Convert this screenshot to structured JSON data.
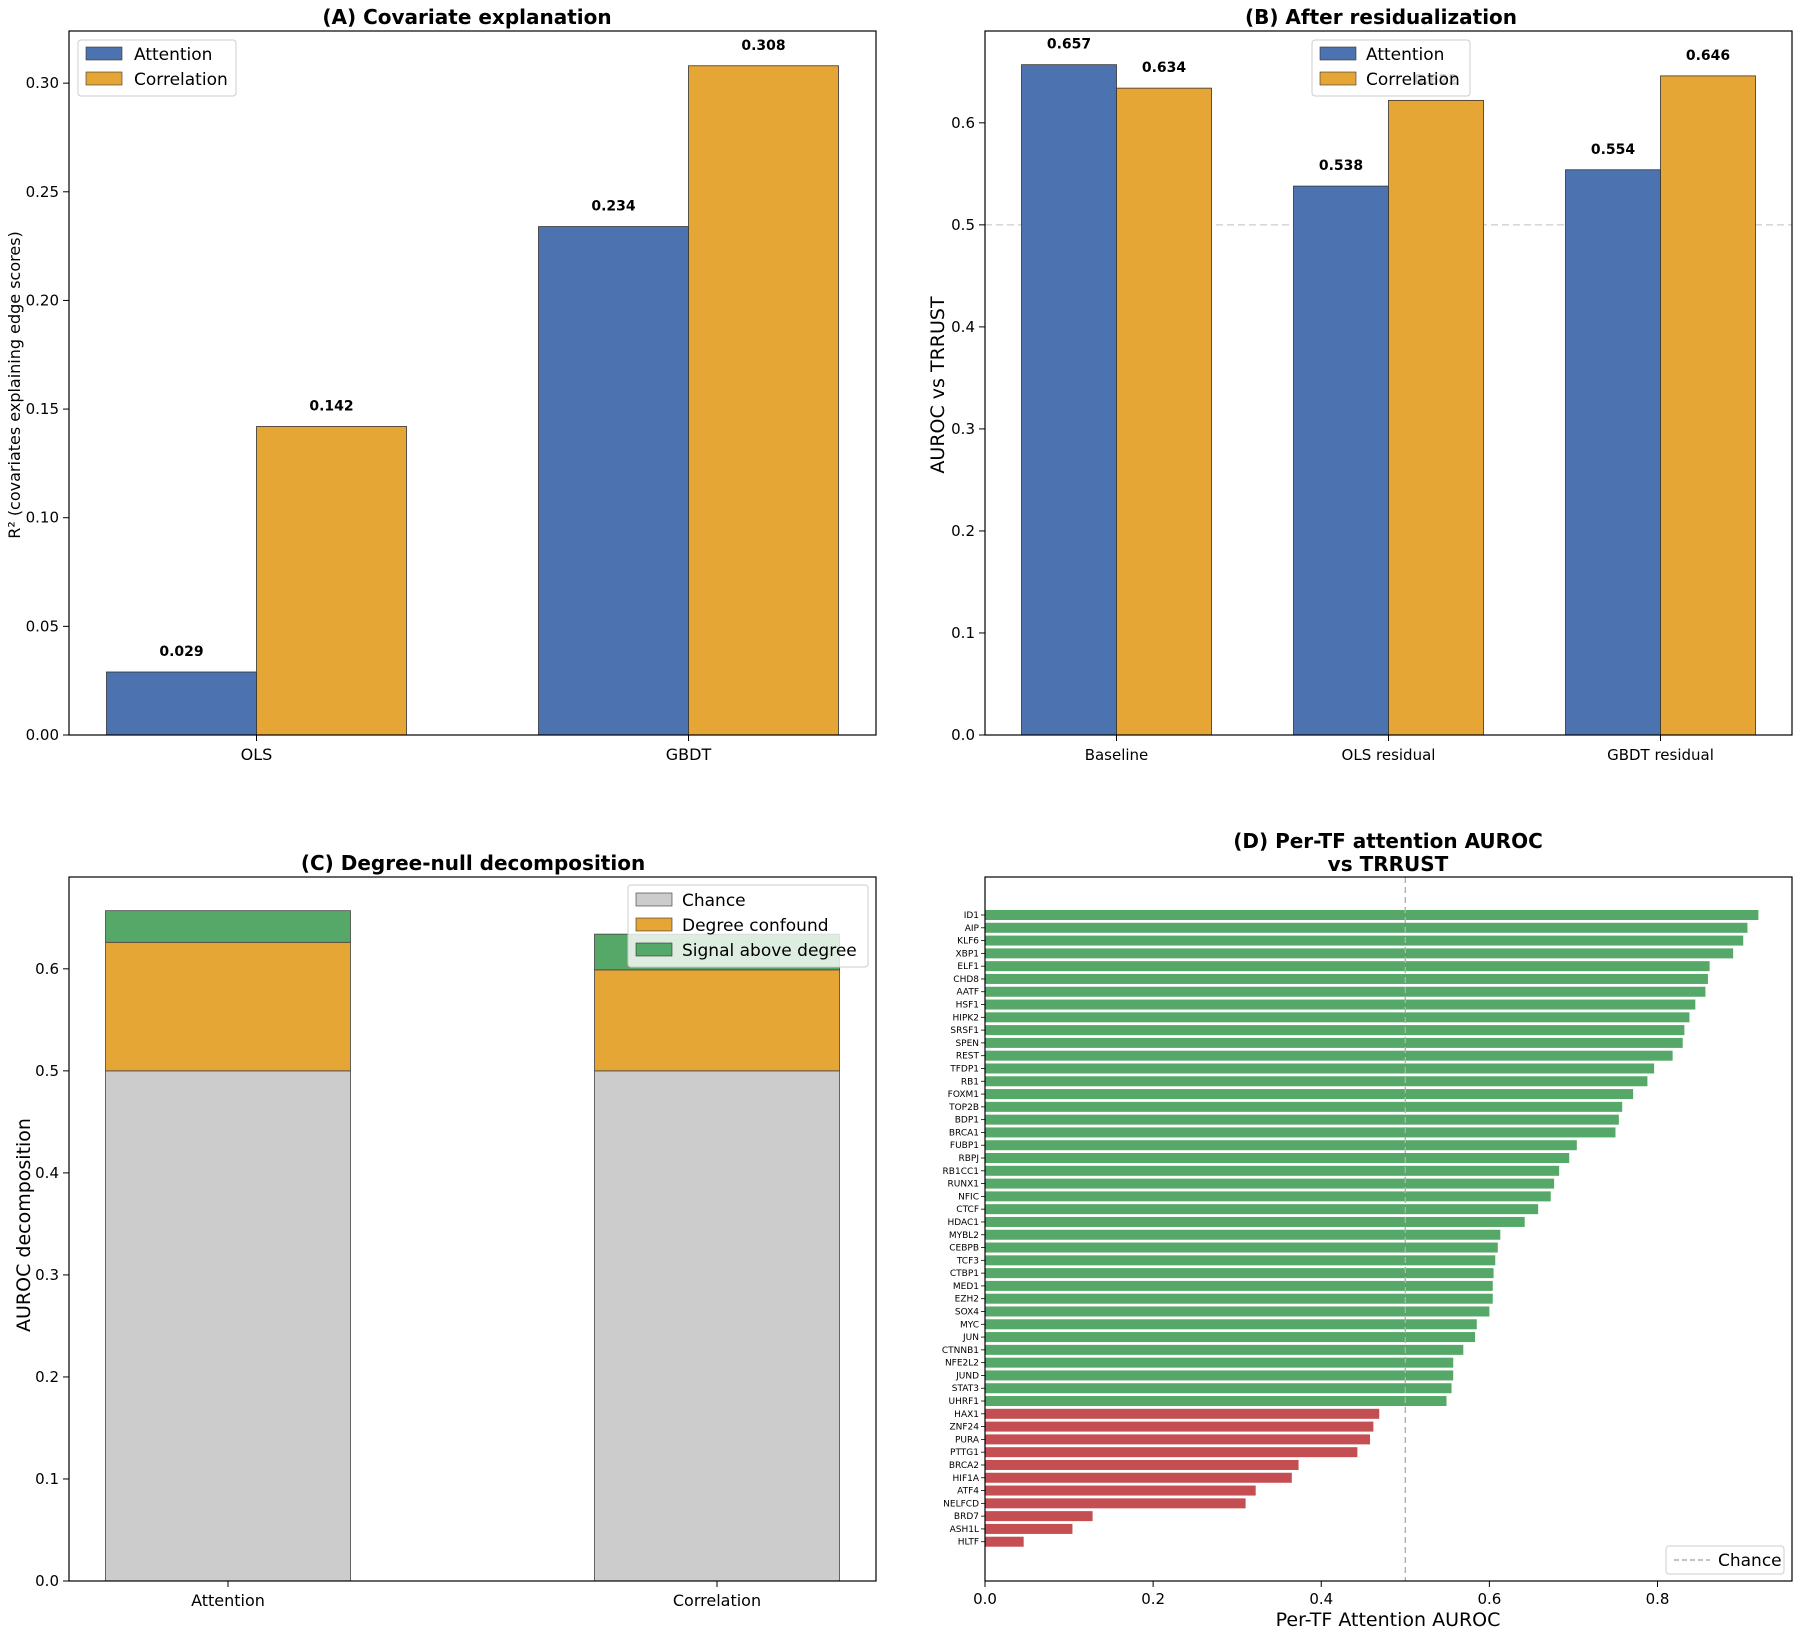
{
  "colors": {
    "attention": "#4c72b0",
    "correlation": "#e6a636",
    "chance": "#cccccc",
    "degree": "#e6a636",
    "signal": "#55a868",
    "negative": "#c44e52",
    "chanceLine": "#b0b0b0"
  },
  "panelA": {
    "title": "(A) Covariate explanation",
    "ylabel": "R² (covariates explaining edge scores)",
    "chart_data": {
      "type": "bar",
      "categories": [
        "OLS",
        "GBDT"
      ],
      "series": [
        {
          "name": "Attention",
          "values": [
            0.029,
            0.234
          ]
        },
        {
          "name": "Correlation",
          "values": [
            0.142,
            0.308
          ]
        }
      ],
      "labels": [
        [
          "0.029",
          "0.234"
        ],
        [
          "0.142",
          "0.308"
        ]
      ],
      "ylim": [
        0,
        0.324
      ],
      "yticks": [
        "0.00",
        "0.05",
        "0.10",
        "0.15",
        "0.20",
        "0.25",
        "0.30"
      ],
      "legend": [
        "Attention",
        "Correlation"
      ]
    }
  },
  "panelB": {
    "title": "(B) After residualization",
    "ylabel": "AUROC vs TRRUST",
    "chart_data": {
      "type": "bar",
      "categories": [
        "Baseline",
        "OLS residual",
        "GBDT residual"
      ],
      "series": [
        {
          "name": "Attention",
          "values": [
            0.657,
            0.538,
            0.554
          ]
        },
        {
          "name": "Correlation",
          "values": [
            0.634,
            0.622,
            0.646
          ]
        }
      ],
      "labels": [
        [
          "0.657",
          "0.538",
          "0.554"
        ],
        [
          "0.634",
          "0.622",
          "0.646"
        ]
      ],
      "reference_line": 0.5,
      "ylim": [
        0,
        0.69
      ],
      "yticks": [
        "0.0",
        "0.1",
        "0.2",
        "0.3",
        "0.4",
        "0.5",
        "0.6"
      ],
      "legend": [
        "Attention",
        "Correlation"
      ]
    }
  },
  "panelC": {
    "title": "(C) Degree-null decomposition",
    "ylabel": "AUROC decomposition",
    "chart_data": {
      "type": "bar",
      "stacked": true,
      "categories": [
        "Attention",
        "Correlation"
      ],
      "series": [
        {
          "name": "Chance",
          "values": [
            0.5,
            0.5
          ]
        },
        {
          "name": "Degree confound",
          "values": [
            0.126,
            0.099
          ]
        },
        {
          "name": "Signal above degree",
          "values": [
            0.031,
            0.035
          ]
        }
      ],
      "ylim": [
        0,
        0.69
      ],
      "yticks": [
        "0.0",
        "0.1",
        "0.2",
        "0.3",
        "0.4",
        "0.5",
        "0.6"
      ],
      "legend": [
        "Chance",
        "Degree confound",
        "Signal above degree"
      ]
    }
  },
  "panelD": {
    "title": [
      "(D) Per-TF attention AUROC",
      "vs TRRUST"
    ],
    "xlabel": "Per-TF Attention AUROC",
    "chart_data": {
      "type": "barh",
      "categories": [
        "ID1",
        "AIP",
        "KLF6",
        "XBP1",
        "ELF1",
        "CHD8",
        "AATF",
        "HSF1",
        "HIPK2",
        "SRSF1",
        "SPEN",
        "REST",
        "TFDP1",
        "RB1",
        "FOXM1",
        "TOP2B",
        "BDP1",
        "BRCA1",
        "FUBP1",
        "RBPJ",
        "RB1CC1",
        "RUNX1",
        "NFIC",
        "CTCF",
        "HDAC1",
        "MYBL2",
        "CEBPB",
        "TCF3",
        "CTBP1",
        "MED1",
        "EZH2",
        "SOX4",
        "MYC",
        "JUN",
        "CTNNB1",
        "NFE2L2",
        "JUND",
        "STAT3",
        "UHRF1",
        "HAX1",
        "ZNF24",
        "PURA",
        "PTTG1",
        "BRCA2",
        "HIF1A",
        "ATF4",
        "NELFCD",
        "BRD7",
        "ASH1L",
        "HLTF"
      ],
      "values": [
        0.92,
        0.907,
        0.902,
        0.89,
        0.862,
        0.86,
        0.857,
        0.845,
        0.838,
        0.832,
        0.83,
        0.818,
        0.796,
        0.788,
        0.771,
        0.758,
        0.754,
        0.75,
        0.704,
        0.695,
        0.683,
        0.677,
        0.673,
        0.658,
        0.642,
        0.613,
        0.61,
        0.607,
        0.605,
        0.604,
        0.604,
        0.6,
        0.585,
        0.583,
        0.569,
        0.557,
        0.557,
        0.555,
        0.549,
        0.469,
        0.462,
        0.458,
        0.443,
        0.373,
        0.365,
        0.322,
        0.31,
        0.128,
        0.104,
        0.046
      ],
      "reference_line": 0.5,
      "xlim": [
        0,
        0.96
      ],
      "xticks": [
        "0.0",
        "0.2",
        "0.4",
        "0.6",
        "0.8"
      ],
      "legend": [
        "Chance"
      ]
    }
  }
}
